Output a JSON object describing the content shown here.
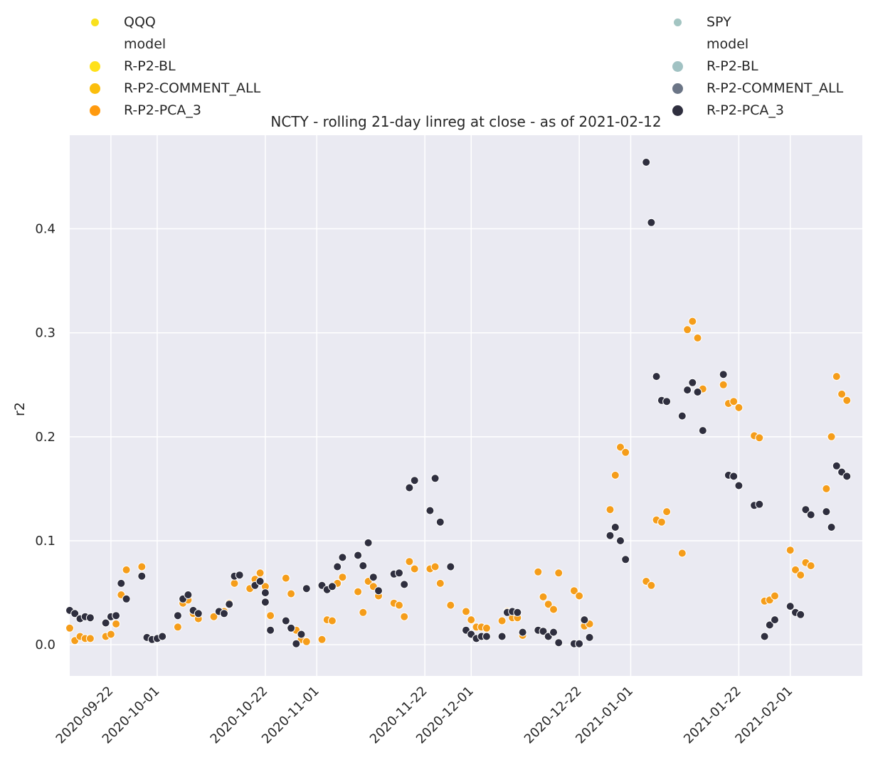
{
  "chart_data": {
    "type": "scatter",
    "title": "NCTY - rolling 21-day linreg at close - as of 2021-02-12",
    "xlabel": "",
    "ylabel": "r2",
    "x_tick_labels": [
      "2020-09-22",
      "2020-10-01",
      "2020-10-22",
      "2020-11-01",
      "2020-11-22",
      "2020-12-01",
      "2020-12-22",
      "2021-01-01",
      "2021-01-22",
      "2021-02-01"
    ],
    "y_tick_labels": [
      "0.0",
      "0.1",
      "0.2",
      "0.3",
      "0.4"
    ],
    "xlim": [
      "2020-09-14",
      "2021-02-15"
    ],
    "ylim": [
      -0.03,
      0.49
    ],
    "grid": true,
    "legends": [
      {
        "position": "top-left",
        "entries": [
          {
            "label": "QQQ",
            "color": "#f9e11e",
            "kind": "group"
          },
          {
            "label": "model",
            "color": null,
            "kind": "header"
          },
          {
            "label": "R-P2-BL",
            "color": "#ffe11a",
            "kind": "item"
          },
          {
            "label": "R-P2-COMMENT_ALL",
            "color": "#fbbe0c",
            "kind": "item"
          },
          {
            "label": "R-P2-PCA_3",
            "color": "#ff9a0e",
            "kind": "item"
          }
        ]
      },
      {
        "position": "top-right",
        "entries": [
          {
            "label": "SPY",
            "color": "#a3c5c2",
            "kind": "group"
          },
          {
            "label": "model",
            "color": null,
            "kind": "header"
          },
          {
            "label": "R-P2-BL",
            "color": "#a1c2c3",
            "kind": "item"
          },
          {
            "label": "R-P2-COMMENT_ALL",
            "color": "#6b7586",
            "kind": "item"
          },
          {
            "label": "R-P2-PCA_3",
            "color": "#2f2f3f",
            "kind": "item"
          }
        ]
      }
    ],
    "series": [
      {
        "name": "QQQ R-P2-PCA_3",
        "color": "#f59d1a",
        "points": [
          [
            "2020-09-14",
            0.016
          ],
          [
            "2020-09-15",
            0.004
          ],
          [
            "2020-09-16",
            0.008
          ],
          [
            "2020-09-17",
            0.006
          ],
          [
            "2020-09-18",
            0.006
          ],
          [
            "2020-09-21",
            0.008
          ],
          [
            "2020-09-22",
            0.01
          ],
          [
            "2020-09-23",
            0.02
          ],
          [
            "2020-09-24",
            0.048
          ],
          [
            "2020-09-25",
            0.072
          ],
          [
            "2020-09-28",
            0.075
          ],
          [
            "2020-10-05",
            0.017
          ],
          [
            "2020-10-06",
            0.04
          ],
          [
            "2020-10-07",
            0.043
          ],
          [
            "2020-10-08",
            0.03
          ],
          [
            "2020-10-09",
            0.025
          ],
          [
            "2020-10-12",
            0.027
          ],
          [
            "2020-10-14",
            0.032
          ],
          [
            "2020-10-15",
            0.04
          ],
          [
            "2020-10-16",
            0.059
          ],
          [
            "2020-10-19",
            0.054
          ],
          [
            "2020-10-20",
            0.063
          ],
          [
            "2020-10-21",
            0.069
          ],
          [
            "2020-10-22",
            0.056
          ],
          [
            "2020-10-23",
            0.028
          ],
          [
            "2020-10-26",
            0.064
          ],
          [
            "2020-10-27",
            0.049
          ],
          [
            "2020-10-28",
            0.014
          ],
          [
            "2020-10-29",
            0.005
          ],
          [
            "2020-10-30",
            0.003
          ],
          [
            "2020-11-02",
            0.005
          ],
          [
            "2020-11-03",
            0.024
          ],
          [
            "2020-11-04",
            0.023
          ],
          [
            "2020-11-05",
            0.059
          ],
          [
            "2020-11-06",
            0.065
          ],
          [
            "2020-11-09",
            0.051
          ],
          [
            "2020-11-10",
            0.031
          ],
          [
            "2020-11-11",
            0.061
          ],
          [
            "2020-11-12",
            0.056
          ],
          [
            "2020-11-13",
            0.047
          ],
          [
            "2020-11-16",
            0.04
          ],
          [
            "2020-11-17",
            0.038
          ],
          [
            "2020-11-18",
            0.027
          ],
          [
            "2020-11-19",
            0.08
          ],
          [
            "2020-11-20",
            0.073
          ],
          [
            "2020-11-23",
            0.073
          ],
          [
            "2020-11-24",
            0.075
          ],
          [
            "2020-11-25",
            0.059
          ],
          [
            "2020-11-27",
            0.038
          ],
          [
            "2020-11-30",
            0.032
          ],
          [
            "2020-12-01",
            0.024
          ],
          [
            "2020-12-02",
            0.017
          ],
          [
            "2020-12-03",
            0.017
          ],
          [
            "2020-12-04",
            0.016
          ],
          [
            "2020-12-07",
            0.023
          ],
          [
            "2020-12-08",
            0.032
          ],
          [
            "2020-12-09",
            0.026
          ],
          [
            "2020-12-10",
            0.026
          ],
          [
            "2020-12-11",
            0.009
          ],
          [
            "2020-12-14",
            0.07
          ],
          [
            "2020-12-15",
            0.046
          ],
          [
            "2020-12-16",
            0.039
          ],
          [
            "2020-12-17",
            0.034
          ],
          [
            "2020-12-18",
            0.069
          ],
          [
            "2020-12-21",
            0.052
          ],
          [
            "2020-12-22",
            0.047
          ],
          [
            "2020-12-23",
            0.018
          ],
          [
            "2020-12-24",
            0.02
          ],
          [
            "2020-12-28",
            0.13
          ],
          [
            "2020-12-29",
            0.163
          ],
          [
            "2020-12-30",
            0.19
          ],
          [
            "2020-12-31",
            0.185
          ],
          [
            "2021-01-04",
            0.061
          ],
          [
            "2021-01-05",
            0.057
          ],
          [
            "2021-01-06",
            0.12
          ],
          [
            "2021-01-07",
            0.118
          ],
          [
            "2021-01-08",
            0.128
          ],
          [
            "2021-01-11",
            0.088
          ],
          [
            "2021-01-12",
            0.303
          ],
          [
            "2021-01-13",
            0.311
          ],
          [
            "2021-01-14",
            0.295
          ],
          [
            "2021-01-15",
            0.246
          ],
          [
            "2021-01-19",
            0.25
          ],
          [
            "2021-01-20",
            0.232
          ],
          [
            "2021-01-21",
            0.234
          ],
          [
            "2021-01-22",
            0.228
          ],
          [
            "2021-01-25",
            0.201
          ],
          [
            "2021-01-26",
            0.199
          ],
          [
            "2021-01-27",
            0.042
          ],
          [
            "2021-01-28",
            0.043
          ],
          [
            "2021-01-29",
            0.047
          ],
          [
            "2021-02-01",
            0.091
          ],
          [
            "2021-02-02",
            0.072
          ],
          [
            "2021-02-03",
            0.067
          ],
          [
            "2021-02-04",
            0.079
          ],
          [
            "2021-02-05",
            0.076
          ],
          [
            "2021-02-08",
            0.15
          ],
          [
            "2021-02-09",
            0.2
          ],
          [
            "2021-02-10",
            0.258
          ],
          [
            "2021-02-11",
            0.241
          ],
          [
            "2021-02-12",
            0.235
          ]
        ]
      },
      {
        "name": "SPY R-P2-PCA_3",
        "color": "#2f2f3f",
        "points": [
          [
            "2020-09-14",
            0.033
          ],
          [
            "2020-09-15",
            0.03
          ],
          [
            "2020-09-16",
            0.025
          ],
          [
            "2020-09-17",
            0.027
          ],
          [
            "2020-09-18",
            0.026
          ],
          [
            "2020-09-21",
            0.021
          ],
          [
            "2020-09-22",
            0.027
          ],
          [
            "2020-09-23",
            0.028
          ],
          [
            "2020-09-24",
            0.059
          ],
          [
            "2020-09-25",
            0.044
          ],
          [
            "2020-09-28",
            0.066
          ],
          [
            "2020-09-29",
            0.007
          ],
          [
            "2020-09-30",
            0.005
          ],
          [
            "2020-10-01",
            0.006
          ],
          [
            "2020-10-02",
            0.008
          ],
          [
            "2020-10-05",
            0.028
          ],
          [
            "2020-10-06",
            0.044
          ],
          [
            "2020-10-07",
            0.048
          ],
          [
            "2020-10-08",
            0.033
          ],
          [
            "2020-10-09",
            0.03
          ],
          [
            "2020-10-13",
            0.032
          ],
          [
            "2020-10-14",
            0.03
          ],
          [
            "2020-10-15",
            0.039
          ],
          [
            "2020-10-16",
            0.066
          ],
          [
            "2020-10-17",
            0.067
          ],
          [
            "2020-10-20",
            0.057
          ],
          [
            "2020-10-21",
            0.061
          ],
          [
            "2020-10-22",
            0.05
          ],
          [
            "2020-10-22",
            0.041
          ],
          [
            "2020-10-23",
            0.014
          ],
          [
            "2020-10-26",
            0.023
          ],
          [
            "2020-10-27",
            0.016
          ],
          [
            "2020-10-28",
            0.001
          ],
          [
            "2020-10-29",
            0.01
          ],
          [
            "2020-10-30",
            0.054
          ],
          [
            "2020-11-02",
            0.057
          ],
          [
            "2020-11-03",
            0.053
          ],
          [
            "2020-11-04",
            0.056
          ],
          [
            "2020-11-05",
            0.075
          ],
          [
            "2020-11-06",
            0.084
          ],
          [
            "2020-11-09",
            0.086
          ],
          [
            "2020-11-10",
            0.076
          ],
          [
            "2020-11-11",
            0.098
          ],
          [
            "2020-11-12",
            0.065
          ],
          [
            "2020-11-13",
            0.052
          ],
          [
            "2020-11-16",
            0.068
          ],
          [
            "2020-11-17",
            0.069
          ],
          [
            "2020-11-18",
            0.058
          ],
          [
            "2020-11-19",
            0.151
          ],
          [
            "2020-11-20",
            0.158
          ],
          [
            "2020-11-23",
            0.129
          ],
          [
            "2020-11-24",
            0.16
          ],
          [
            "2020-11-25",
            0.118
          ],
          [
            "2020-11-27",
            0.075
          ],
          [
            "2020-11-30",
            0.014
          ],
          [
            "2020-12-01",
            0.01
          ],
          [
            "2020-12-02",
            0.006
          ],
          [
            "2020-12-03",
            0.008
          ],
          [
            "2020-12-04",
            0.008
          ],
          [
            "2020-12-07",
            0.008
          ],
          [
            "2020-12-08",
            0.031
          ],
          [
            "2020-12-09",
            0.032
          ],
          [
            "2020-12-10",
            0.031
          ],
          [
            "2020-12-11",
            0.012
          ],
          [
            "2020-12-14",
            0.014
          ],
          [
            "2020-12-15",
            0.013
          ],
          [
            "2020-12-16",
            0.008
          ],
          [
            "2020-12-17",
            0.012
          ],
          [
            "2020-12-18",
            0.002
          ],
          [
            "2020-12-21",
            0.001
          ],
          [
            "2020-12-22",
            0.001
          ],
          [
            "2020-12-23",
            0.024
          ],
          [
            "2020-12-24",
            0.007
          ],
          [
            "2020-12-28",
            0.105
          ],
          [
            "2020-12-29",
            0.113
          ],
          [
            "2020-12-30",
            0.1
          ],
          [
            "2020-12-31",
            0.082
          ],
          [
            "2021-01-04",
            0.464
          ],
          [
            "2021-01-05",
            0.406
          ],
          [
            "2021-01-06",
            0.258
          ],
          [
            "2021-01-07",
            0.235
          ],
          [
            "2021-01-08",
            0.234
          ],
          [
            "2021-01-11",
            0.22
          ],
          [
            "2021-01-12",
            0.245
          ],
          [
            "2021-01-13",
            0.252
          ],
          [
            "2021-01-14",
            0.243
          ],
          [
            "2021-01-15",
            0.206
          ],
          [
            "2021-01-19",
            0.26
          ],
          [
            "2021-01-20",
            0.163
          ],
          [
            "2021-01-21",
            0.162
          ],
          [
            "2021-01-22",
            0.153
          ],
          [
            "2021-01-25",
            0.134
          ],
          [
            "2021-01-26",
            0.135
          ],
          [
            "2021-01-27",
            0.008
          ],
          [
            "2021-01-28",
            0.019
          ],
          [
            "2021-01-29",
            0.024
          ],
          [
            "2021-02-01",
            0.037
          ],
          [
            "2021-02-02",
            0.031
          ],
          [
            "2021-02-03",
            0.029
          ],
          [
            "2021-02-04",
            0.13
          ],
          [
            "2021-02-05",
            0.125
          ],
          [
            "2021-02-08",
            0.128
          ],
          [
            "2021-02-09",
            0.113
          ],
          [
            "2021-02-10",
            0.172
          ],
          [
            "2021-02-11",
            0.166
          ],
          [
            "2021-02-12",
            0.162
          ]
        ]
      }
    ]
  }
}
